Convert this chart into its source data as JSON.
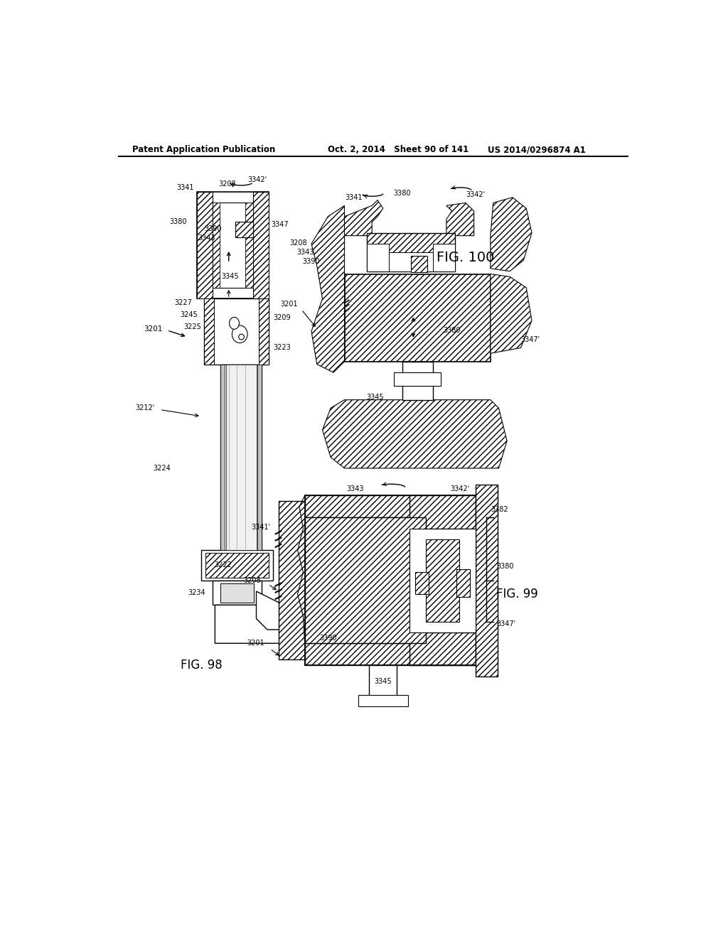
{
  "title_left": "Patent Application Publication",
  "title_center": "Oct. 2, 2014   Sheet 90 of 141",
  "title_right": "US 2014/0296874 A1",
  "fig98_label": "FIG. 98",
  "fig99_label": "FIG. 99",
  "fig100_label": "FIG. 100",
  "background_color": "#ffffff",
  "line_color": "#000000"
}
